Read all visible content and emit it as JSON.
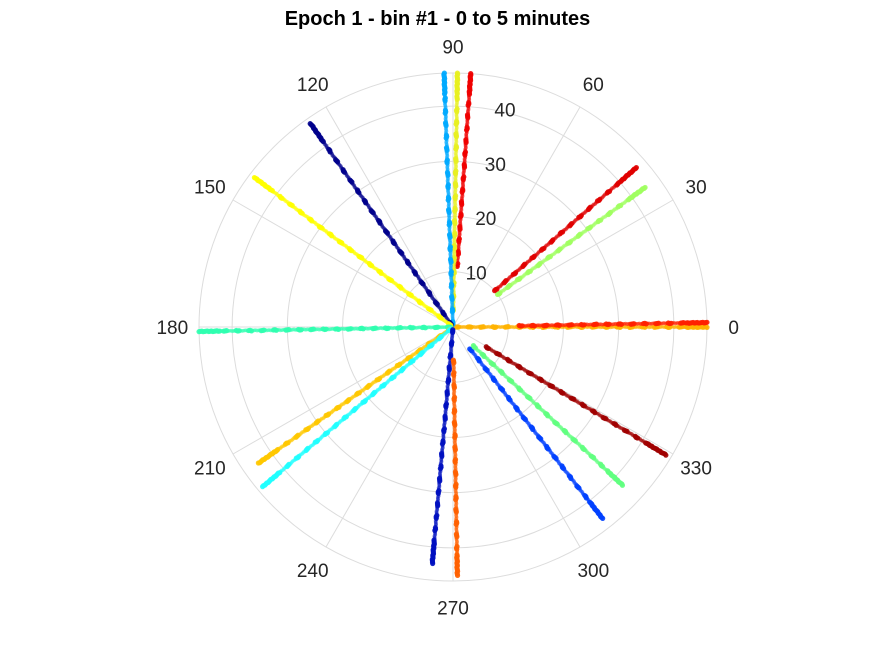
{
  "chart_data": {
    "type": "scatter",
    "subtype": "polar",
    "title": "Epoch 1 - bin #1 - 0 to 5 minutes",
    "theta_unit": "degrees",
    "theta_ticks": [
      0,
      30,
      60,
      90,
      120,
      150,
      180,
      210,
      240,
      270,
      300,
      330
    ],
    "theta_tick_labels": [
      "0",
      "30",
      "60",
      "90",
      "120",
      "150",
      "180",
      "210",
      "240",
      "270",
      "300",
      "330"
    ],
    "r_ticks": [
      10,
      20,
      30,
      40
    ],
    "r_tick_labels": [
      "10",
      "20",
      "30",
      "40"
    ],
    "r_lim": [
      0,
      46
    ],
    "grid": true,
    "colormap": "jet",
    "series": [
      {
        "theta": 0,
        "r_min": 0.5,
        "r_max": 46,
        "color": "#ffb300"
      },
      {
        "theta": 1,
        "r_min": 12,
        "r_max": 46,
        "color": "#ff2000"
      },
      {
        "theta": 36,
        "r_min": 10,
        "r_max": 43,
        "color": "#a0ff60"
      },
      {
        "theta": 41,
        "r_min": 10,
        "r_max": 44,
        "color": "#e00000"
      },
      {
        "theta": 86,
        "r_min": 11,
        "r_max": 46,
        "color": "#f00000"
      },
      {
        "theta": 89,
        "r_min": 3,
        "r_max": 46,
        "color": "#e8f020"
      },
      {
        "theta": 92,
        "r_min": 0.5,
        "r_max": 46,
        "color": "#00aaff"
      },
      {
        "theta": 125,
        "r_min": 0.5,
        "r_max": 45,
        "color": "#00008c"
      },
      {
        "theta": 143,
        "r_min": 0.5,
        "r_max": 45,
        "color": "#ffff00"
      },
      {
        "theta": 181,
        "r_min": 0.5,
        "r_max": 46,
        "color": "#30ffb0"
      },
      {
        "theta": 215,
        "r_min": 0.5,
        "r_max": 43,
        "color": "#ffc800"
      },
      {
        "theta": 220,
        "r_min": 0.5,
        "r_max": 45,
        "color": "#20ffff"
      },
      {
        "theta": 265,
        "r_min": 0.5,
        "r_max": 43,
        "color": "#0010c0"
      },
      {
        "theta": 271,
        "r_min": 6,
        "r_max": 45,
        "color": "#ff6000"
      },
      {
        "theta": 308,
        "r_min": 5,
        "r_max": 44,
        "color": "#0040ff"
      },
      {
        "theta": 317,
        "r_min": 5,
        "r_max": 42,
        "color": "#60ff80"
      },
      {
        "theta": 329,
        "r_min": 7,
        "r_max": 45,
        "color": "#a00000"
      }
    ]
  }
}
